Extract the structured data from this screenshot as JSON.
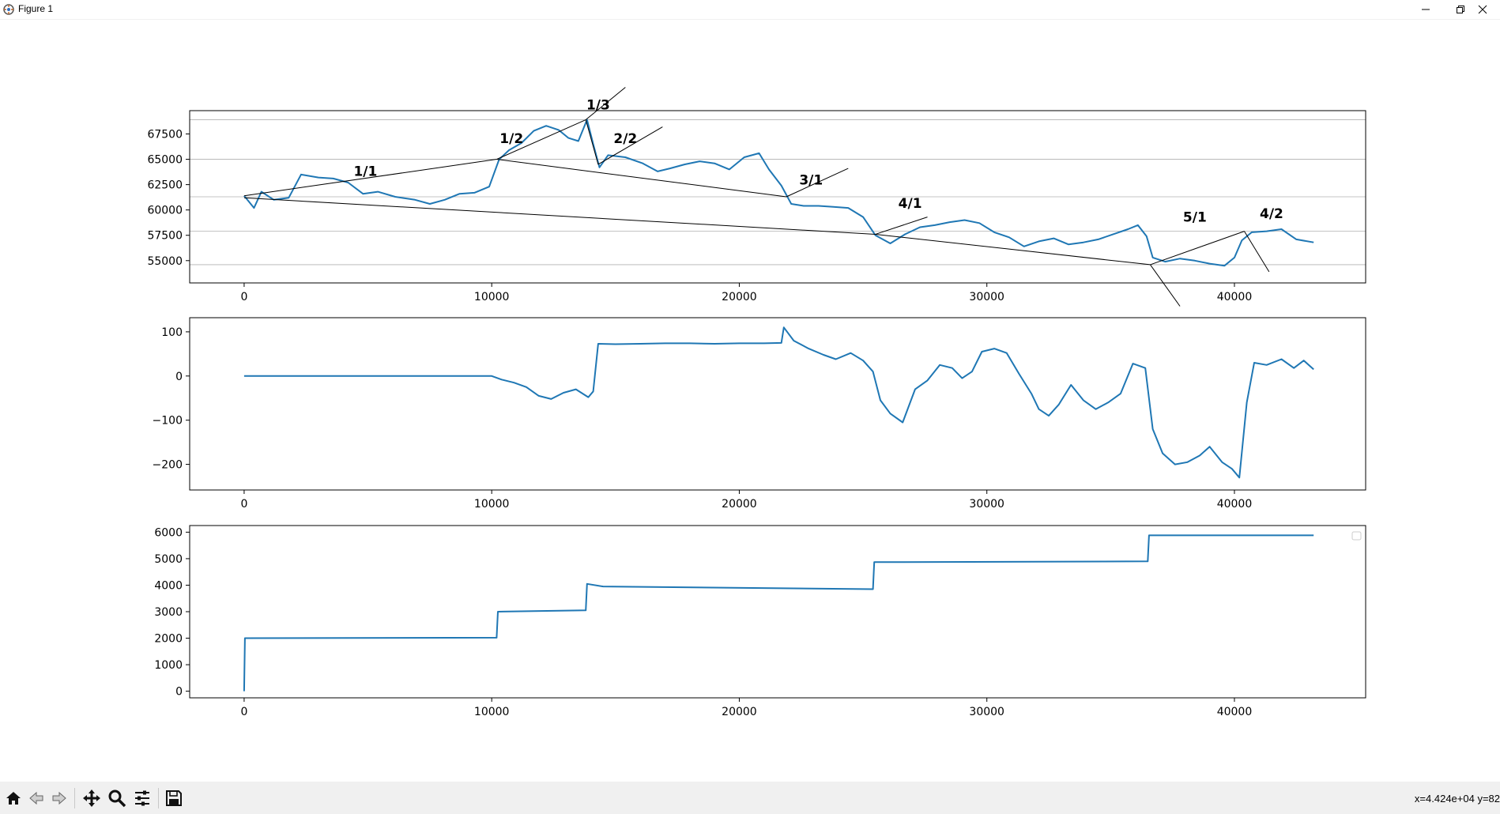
{
  "window": {
    "title": "Figure 1",
    "minimize_icon": "minimize-icon",
    "restore_icon": "restore-icon",
    "close_icon": "close-icon"
  },
  "toolbar": {
    "tools": [
      "home-icon",
      "back-arrow-icon",
      "forward-arrow-icon",
      "pan-icon",
      "zoom-icon",
      "configure-subplots-icon",
      "save-icon"
    ],
    "coordinates": "x=4.424e+04 y=82"
  },
  "colors": {
    "series": "#1f77b4",
    "grid": "#b0b0b0",
    "annotation_line": "#000000"
  },
  "chart_data": [
    {
      "type": "line",
      "xlim": [
        -2200,
        45300
      ],
      "ylim": [
        52800,
        69800
      ],
      "xticks": [
        "0",
        "10000",
        "20000",
        "30000",
        "40000"
      ],
      "yticks": [
        "55000",
        "57500",
        "60000",
        "62500",
        "65000",
        "67500"
      ],
      "grid": "horizontal",
      "hgrid_values": [
        54600,
        57900,
        61300,
        65000,
        68900
      ],
      "series": [
        {
          "points": [
            [
              0,
              61400
            ],
            [
              400,
              60200
            ],
            [
              700,
              61800
            ],
            [
              1200,
              61000
            ],
            [
              1800,
              61200
            ],
            [
              2300,
              63500
            ],
            [
              3000,
              63200
            ],
            [
              3600,
              63100
            ],
            [
              4200,
              62700
            ],
            [
              4800,
              61600
            ],
            [
              5400,
              61800
            ],
            [
              6100,
              61300
            ],
            [
              6900,
              61000
            ],
            [
              7500,
              60600
            ],
            [
              8100,
              61000
            ],
            [
              8700,
              61600
            ],
            [
              9300,
              61700
            ],
            [
              9900,
              62300
            ],
            [
              10300,
              65000
            ],
            [
              10700,
              65900
            ],
            [
              11200,
              66600
            ],
            [
              11700,
              67800
            ],
            [
              12200,
              68300
            ],
            [
              12700,
              67900
            ],
            [
              13100,
              67100
            ],
            [
              13500,
              66800
            ],
            [
              13850,
              68900
            ],
            [
              14100,
              66500
            ],
            [
              14350,
              64200
            ],
            [
              14700,
              65400
            ],
            [
              15400,
              65200
            ],
            [
              16100,
              64600
            ],
            [
              16700,
              63800
            ],
            [
              17200,
              64100
            ],
            [
              17800,
              64500
            ],
            [
              18400,
              64800
            ],
            [
              19000,
              64600
            ],
            [
              19600,
              64000
            ],
            [
              20200,
              65200
            ],
            [
              20800,
              65600
            ],
            [
              21200,
              64000
            ],
            [
              21700,
              62400
            ],
            [
              22100,
              60600
            ],
            [
              22600,
              60400
            ],
            [
              23200,
              60400
            ],
            [
              23800,
              60300
            ],
            [
              24400,
              60200
            ],
            [
              25000,
              59300
            ],
            [
              25500,
              57500
            ],
            [
              26100,
              56700
            ],
            [
              26700,
              57600
            ],
            [
              27300,
              58300
            ],
            [
              27900,
              58500
            ],
            [
              28500,
              58800
            ],
            [
              29100,
              59000
            ],
            [
              29700,
              58700
            ],
            [
              30300,
              57800
            ],
            [
              30900,
              57300
            ],
            [
              31500,
              56400
            ],
            [
              32100,
              56900
            ],
            [
              32700,
              57200
            ],
            [
              33300,
              56600
            ],
            [
              33900,
              56800
            ],
            [
              34500,
              57100
            ],
            [
              35100,
              57600
            ],
            [
              35700,
              58100
            ],
            [
              36100,
              58500
            ],
            [
              36450,
              57400
            ],
            [
              36700,
              55300
            ],
            [
              37200,
              54900
            ],
            [
              37800,
              55200
            ],
            [
              38400,
              55000
            ],
            [
              39000,
              54700
            ],
            [
              39600,
              54500
            ],
            [
              40000,
              55300
            ],
            [
              40300,
              57000
            ],
            [
              40700,
              57800
            ],
            [
              41300,
              57900
            ],
            [
              41900,
              58100
            ],
            [
              42500,
              57100
            ],
            [
              43200,
              56800
            ]
          ],
          "color": "#1f77b4"
        }
      ],
      "annotations": [
        {
          "text": "1/1",
          "x": 4900,
          "y": 63350
        },
        {
          "text": "1/2",
          "x": 10800,
          "y": 66600
        },
        {
          "text": "1/3",
          "x": 14300,
          "y": 69900
        },
        {
          "text": "2/2",
          "x": 15400,
          "y": 66600
        },
        {
          "text": "3/1",
          "x": 22900,
          "y": 62500
        },
        {
          "text": "4/1",
          "x": 26900,
          "y": 60200
        },
        {
          "text": "5/1",
          "x": 38400,
          "y": 58850
        },
        {
          "text": "4/2",
          "x": 41500,
          "y": 59200
        }
      ],
      "trend_lines": [
        [
          [
            0,
            61400
          ],
          [
            10200,
            65000
          ]
        ],
        [
          [
            10200,
            65000
          ],
          [
            13800,
            68900
          ]
        ],
        [
          [
            13800,
            68900
          ],
          [
            15400,
            72100
          ]
        ],
        [
          [
            10200,
            65000
          ],
          [
            21900,
            61300
          ]
        ],
        [
          [
            0,
            61200
          ],
          [
            25500,
            57600
          ]
        ],
        [
          [
            13800,
            68900
          ],
          [
            14300,
            64500
          ]
        ],
        [
          [
            14300,
            64500
          ],
          [
            16900,
            68200
          ]
        ],
        [
          [
            21900,
            61300
          ],
          [
            24400,
            64100
          ]
        ],
        [
          [
            25500,
            57600
          ],
          [
            27600,
            59300
          ]
        ],
        [
          [
            25500,
            57600
          ],
          [
            36600,
            54600
          ]
        ],
        [
          [
            36600,
            54600
          ],
          [
            37800,
            50500
          ]
        ],
        [
          [
            36600,
            54600
          ],
          [
            40400,
            57900
          ]
        ],
        [
          [
            40400,
            57900
          ],
          [
            41400,
            53900
          ]
        ]
      ]
    },
    {
      "type": "line",
      "xlim": [
        -2200,
        45300
      ],
      "ylim": [
        -258,
        132
      ],
      "xticks": [
        "0",
        "10000",
        "20000",
        "30000",
        "40000"
      ],
      "yticks": [
        "−200",
        "−100",
        "0",
        "100"
      ],
      "grid": "off",
      "series": [
        {
          "points": [
            [
              0,
              0
            ],
            [
              10000,
              0
            ],
            [
              10400,
              -8
            ],
            [
              10900,
              -15
            ],
            [
              11400,
              -25
            ],
            [
              11900,
              -45
            ],
            [
              12400,
              -52
            ],
            [
              12900,
              -38
            ],
            [
              13400,
              -30
            ],
            [
              13900,
              -48
            ],
            [
              14100,
              -35
            ],
            [
              14300,
              73
            ],
            [
              15000,
              72
            ],
            [
              16000,
              73
            ],
            [
              17000,
              74
            ],
            [
              18000,
              74
            ],
            [
              19000,
              73
            ],
            [
              20000,
              74
            ],
            [
              21000,
              74
            ],
            [
              21700,
              75
            ],
            [
              21800,
              110
            ],
            [
              22200,
              80
            ],
            [
              22800,
              62
            ],
            [
              23400,
              48
            ],
            [
              23900,
              38
            ],
            [
              24500,
              52
            ],
            [
              25000,
              35
            ],
            [
              25400,
              10
            ],
            [
              25700,
              -55
            ],
            [
              26100,
              -85
            ],
            [
              26600,
              -105
            ],
            [
              27100,
              -30
            ],
            [
              27600,
              -10
            ],
            [
              28100,
              25
            ],
            [
              28600,
              18
            ],
            [
              29000,
              -5
            ],
            [
              29400,
              10
            ],
            [
              29800,
              55
            ],
            [
              30300,
              62
            ],
            [
              30800,
              52
            ],
            [
              31300,
              5
            ],
            [
              31800,
              -40
            ],
            [
              32100,
              -75
            ],
            [
              32500,
              -90
            ],
            [
              32900,
              -65
            ],
            [
              33400,
              -20
            ],
            [
              33900,
              -55
            ],
            [
              34400,
              -75
            ],
            [
              34900,
              -60
            ],
            [
              35400,
              -40
            ],
            [
              35900,
              28
            ],
            [
              36400,
              18
            ],
            [
              36700,
              -120
            ],
            [
              37100,
              -175
            ],
            [
              37600,
              -200
            ],
            [
              38100,
              -195
            ],
            [
              38600,
              -180
            ],
            [
              39000,
              -160
            ],
            [
              39500,
              -195
            ],
            [
              39900,
              -210
            ],
            [
              40200,
              -230
            ],
            [
              40500,
              -60
            ],
            [
              40800,
              30
            ],
            [
              41300,
              25
            ],
            [
              41900,
              38
            ],
            [
              42400,
              18
            ],
            [
              42800,
              35
            ],
            [
              43200,
              15
            ]
          ],
          "color": "#1f77b4"
        }
      ]
    },
    {
      "type": "line",
      "xlim": [
        -2200,
        45300
      ],
      "ylim": [
        -250,
        6250
      ],
      "xticks": [
        "0",
        "10000",
        "20000",
        "30000",
        "40000"
      ],
      "yticks": [
        "0",
        "1000",
        "2000",
        "3000",
        "4000",
        "5000",
        "6000"
      ],
      "grid": "off",
      "legend": "top-right",
      "series": [
        {
          "points": [
            [
              0,
              0
            ],
            [
              30,
              2000
            ],
            [
              10200,
              2020
            ],
            [
              10250,
              3000
            ],
            [
              13800,
              3050
            ],
            [
              13850,
              4050
            ],
            [
              14500,
              3950
            ],
            [
              25400,
              3850
            ],
            [
              25450,
              4870
            ],
            [
              36500,
              4900
            ],
            [
              36550,
              5880
            ],
            [
              43200,
              5880
            ]
          ],
          "color": "#1f77b4"
        }
      ]
    }
  ]
}
